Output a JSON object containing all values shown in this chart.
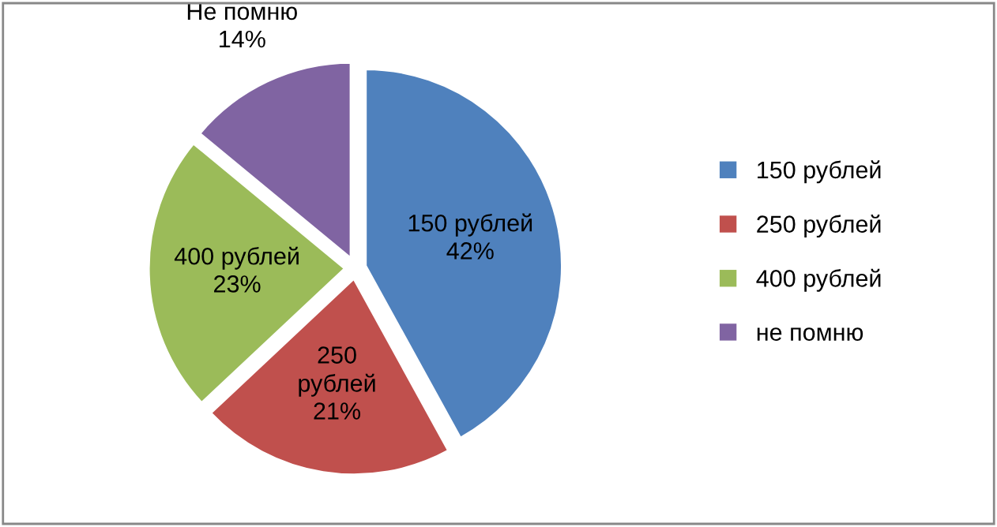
{
  "chart_data": {
    "type": "pie",
    "categories": [
      "150 рублей",
      "250 рублей",
      "400 рублей",
      "не помню"
    ],
    "values": [
      42,
      21,
      23,
      14
    ],
    "value_labels": [
      "150 рублей\n42%",
      "250\nрублей\n21%",
      "400 рублей\n23%",
      "Не помню\n14%"
    ],
    "colors": [
      "#4f81bd",
      "#c0504d",
      "#9bbb59",
      "#8064a2"
    ],
    "legend": "right"
  }
}
